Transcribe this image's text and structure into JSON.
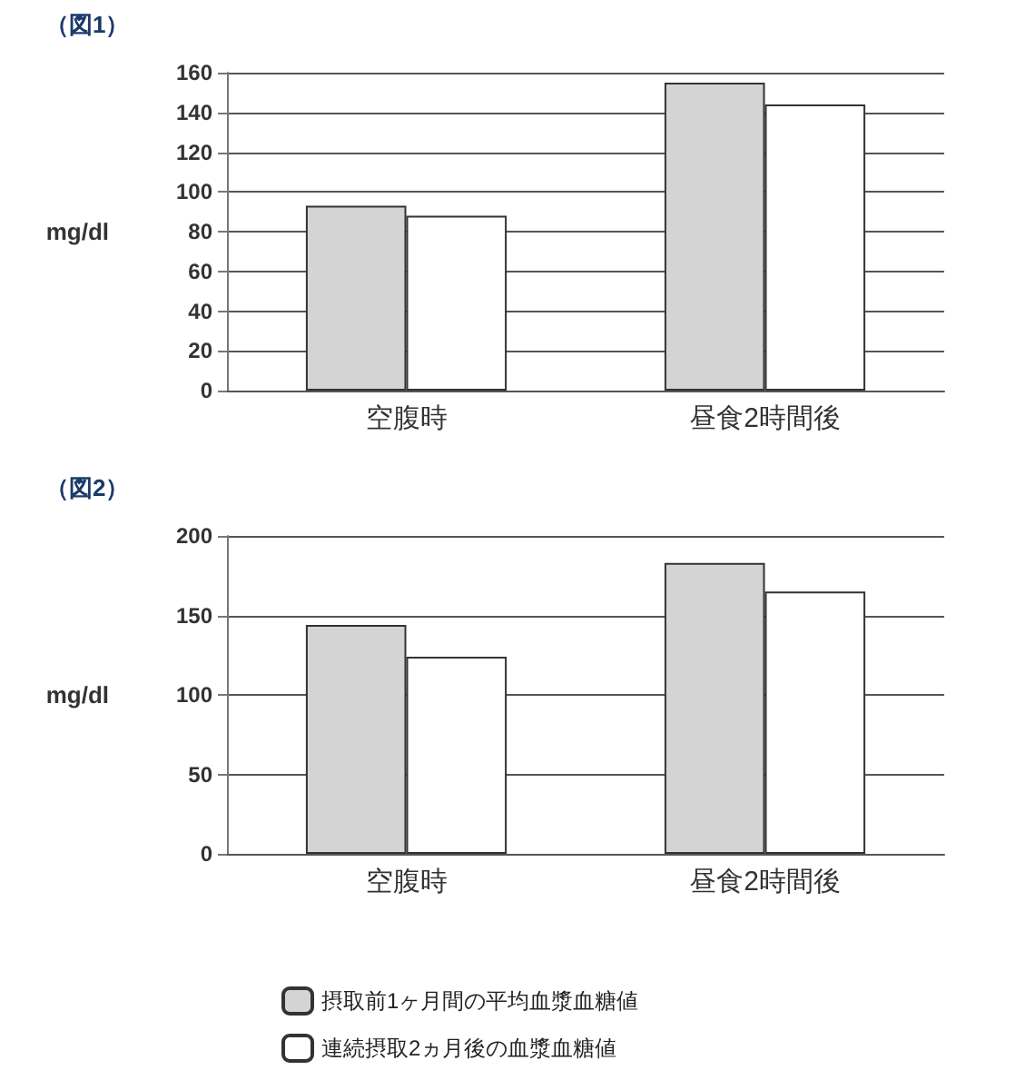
{
  "chart_data": [
    {
      "type": "bar",
      "title": "（図1）",
      "ylabel": "mg/dl",
      "categories": [
        "空腹時",
        "昼食2時間後"
      ],
      "series": [
        {
          "color": "#d4d4d4",
          "values": [
            93,
            155
          ]
        },
        {
          "color": "#ffffff",
          "values": [
            88,
            144
          ]
        }
      ],
      "ylim": [
        0,
        160
      ],
      "yticks": [
        0,
        20,
        40,
        60,
        80,
        100,
        120,
        140,
        160
      ],
      "grid": "y",
      "legend": false
    },
    {
      "type": "bar",
      "title": "（図2）",
      "ylabel": "mg/dl",
      "categories": [
        "空腹時",
        "昼食2時間後"
      ],
      "series": [
        {
          "name": "摂取前1ヶ月間の平均血漿血糖値",
          "color": "#d4d4d4",
          "values": [
            144,
            183
          ]
        },
        {
          "name": "連続摂取2ヵ月後の血漿血糖値",
          "color": "#ffffff",
          "values": [
            124,
            165
          ]
        }
      ],
      "ylim": [
        0,
        200
      ],
      "yticks": [
        0,
        50,
        100,
        150,
        200
      ],
      "grid": "y",
      "legend": "bottom"
    }
  ]
}
